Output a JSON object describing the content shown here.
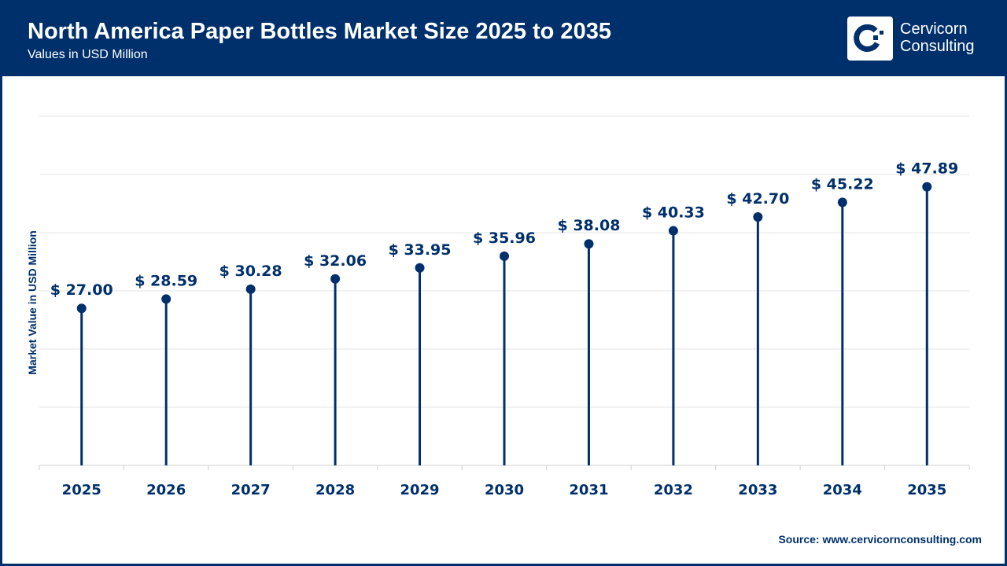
{
  "header": {
    "title": "North America Paper Bottles Market Size 2025 to 2035",
    "subtitle": "Values in USD Million",
    "logo_text_line1": "Cervicorn",
    "logo_text_line2": "Consulting"
  },
  "source": "Source: www.cervicornconsulting.com",
  "colors": {
    "primary": "#00306b",
    "grid": "#e6e6e6"
  },
  "chart_data": {
    "type": "lollipop",
    "ylabel": "Market Value in USD Million",
    "ylim": [
      0,
      60
    ],
    "grid": true,
    "categories": [
      "2025",
      "2026",
      "2027",
      "2028",
      "2029",
      "2030",
      "2031",
      "2032",
      "2033",
      "2034",
      "2035"
    ],
    "values": [
      27.0,
      28.59,
      30.28,
      32.06,
      33.95,
      35.96,
      38.08,
      40.33,
      42.7,
      45.22,
      47.89
    ],
    "data_labels": [
      "$ 27.00",
      "$ 28.59",
      "$ 30.28",
      "$ 32.06",
      "$ 33.95",
      "$ 35.96",
      "$ 38.08",
      "$ 40.33",
      "$ 42.70",
      "$ 45.22",
      "$ 47.89"
    ]
  }
}
